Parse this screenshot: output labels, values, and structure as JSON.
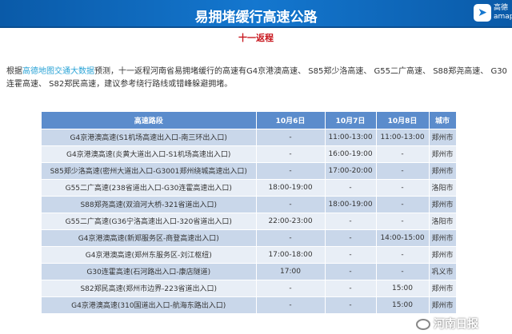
{
  "banner": {
    "title": "易拥堵缓行高速公路",
    "logo_text": "高德",
    "logo_sub": "amap"
  },
  "subtitle": "十一返程",
  "paragraph": {
    "prefix": "根据",
    "highlight": "高德地图交通大数据",
    "rest": "预测，十一返程河南省易拥堵缓行的高速有G4京港澳高速、 S85郑少洛高速、 G55二广高速、 S88郑尧高速、 G30连霍高速、 S82郑民高速，建议参考绕行路线或错峰躲避拥堵。"
  },
  "table": {
    "headers": [
      "高速路段",
      "10月6日",
      "10月7日",
      "10月8日",
      "城市"
    ],
    "rows": [
      [
        "G4京港澳高速(S1机场高速出入口-南三环出入口)",
        "-",
        "11:00-13:00",
        "11:00-13:00",
        "郑州市"
      ],
      [
        "G4京港澳高速(炎黄大道出入口-S1机场高速出入口)",
        "-",
        "16:00-19:00",
        "-",
        "郑州市"
      ],
      [
        "S85郑少洛高速(密州大道出入口-G3001郑州绕城高速出入口)",
        "-",
        "17:00-20:00",
        "-",
        "郑州市"
      ],
      [
        "G55二广高速(238省道出入口-G30连霍高速出入口)",
        "18:00-19:00",
        "-",
        "-",
        "洛阳市"
      ],
      [
        "S88郑尧高速(双洎河大桥-321省道出入口)",
        "-",
        "18:00-19:00",
        "-",
        "郑州市"
      ],
      [
        "G55二广高速(G36宁洛高速出入口-320省道出入口)",
        "22:00-23:00",
        "-",
        "-",
        "洛阳市"
      ],
      [
        "G4京港澳高速(新郑服务区-商登高速出入口)",
        "-",
        "-",
        "14:00-15:00",
        "郑州市"
      ],
      [
        "G4京港澳高速(郑州东服务区-刘江枢纽)",
        "17:00-18:00",
        "-",
        "-",
        "郑州市"
      ],
      [
        "G30连霍高速(石河路出入口-康店隧道)",
        "17:00",
        "-",
        "-",
        "巩义市"
      ],
      [
        "S82郑民高速(郑州市边界-223省道出入口)",
        "-",
        "-",
        "15:00",
        "郑州市"
      ],
      [
        "G4京港澳高速(310国道出入口-航海东路出入口)",
        "-",
        "-",
        "15:00",
        "郑州市"
      ]
    ]
  },
  "watermark": "河南日报"
}
